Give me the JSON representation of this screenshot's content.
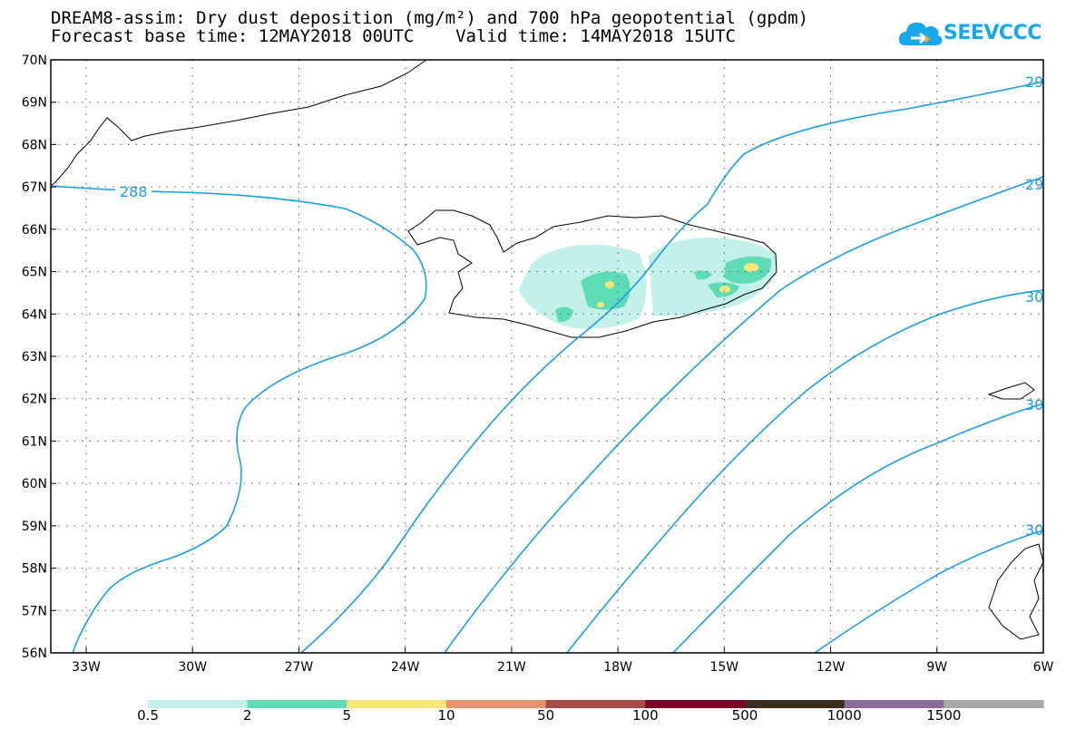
{
  "header": {
    "title_line1": "DREAM8-assim: Dry dust deposition (mg/m²) and 700 hPa geopotential (gpdm)",
    "title_line2": "Forecast base time: 12MAY2018 00UTC    Valid time: 14MAY2018 15UTC",
    "logo_text": "SEEVCCC"
  },
  "map": {
    "lat_labels": [
      "70N",
      "69N",
      "68N",
      "67N",
      "66N",
      "65N",
      "64N",
      "63N",
      "62N",
      "61N",
      "60N",
      "59N",
      "58N",
      "57N",
      "56N"
    ],
    "lon_labels": [
      "33W",
      "30W",
      "27W",
      "24W",
      "21W",
      "18W",
      "15W",
      "12W",
      "9W",
      "6W"
    ],
    "contour_labels": [
      "288",
      "29",
      "29",
      "30",
      "30",
      "30"
    ],
    "contour_color": "#1a9ee6"
  },
  "legend": {
    "colors": [
      "#c4f0ea",
      "#5ddcb5",
      "#f6e77a",
      "#ea9172",
      "#a64d45",
      "#7b0026",
      "#3c2a1a",
      "#8c6a9c",
      "#a8a8a8"
    ],
    "labels": [
      "0.5",
      "2",
      "5",
      "10",
      "50",
      "100",
      "500",
      "1000",
      "1500"
    ]
  }
}
